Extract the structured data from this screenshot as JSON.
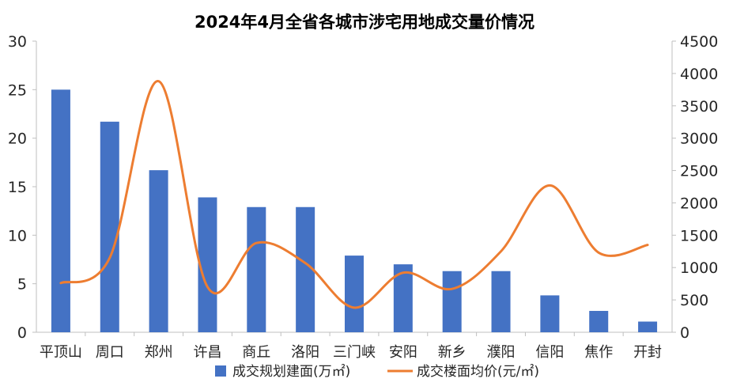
{
  "chart_data": {
    "type": "bar",
    "title": "2024年4月全省各城市涉宅用地成交量价情况",
    "categories": [
      "平顶山",
      "周口",
      "郑州",
      "许昌",
      "商丘",
      "洛阳",
      "三门峡",
      "安阳",
      "新乡",
      "濮阳",
      "信阳",
      "焦作",
      "开封"
    ],
    "series": [
      {
        "name": "成交规划建面(万㎡)",
        "type": "bar",
        "axis": "left",
        "color": "#4472C4",
        "values": [
          25.0,
          21.7,
          16.7,
          13.9,
          12.9,
          12.9,
          7.9,
          7.0,
          6.3,
          6.3,
          3.8,
          2.2,
          1.1
        ]
      },
      {
        "name": "成交楼面均价(元/㎡)",
        "type": "line",
        "axis": "right",
        "color": "#ED7D31",
        "smooth": true,
        "values": [
          760,
          1150,
          3880,
          700,
          1380,
          1070,
          380,
          920,
          670,
          1250,
          2270,
          1230,
          1350
        ]
      }
    ],
    "y_left": {
      "min": 0,
      "max": 30,
      "step": 5,
      "ticks": [
        "0",
        "5",
        "10",
        "15",
        "20",
        "25",
        "30"
      ]
    },
    "y_right": {
      "min": 0,
      "max": 4500,
      "step": 500,
      "ticks": [
        "0",
        "500",
        "1000",
        "1500",
        "2000",
        "2500",
        "3000",
        "3500",
        "4000",
        "4500"
      ]
    },
    "grid": false,
    "legend_position": "bottom"
  }
}
